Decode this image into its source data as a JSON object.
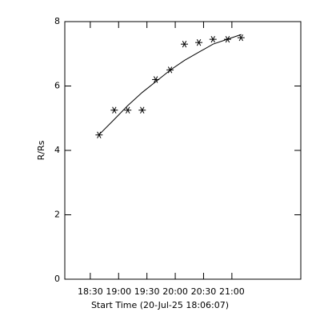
{
  "chart_data": {
    "type": "scatter",
    "xlabel": "Start Time (20-Jul-25 18:06:07)",
    "ylabel": "R/Rs",
    "color": "#000000",
    "series": [
      {
        "type": "scatter",
        "x": [
          1119.3,
          1135.4,
          1149.7,
          1165,
          1179.3,
          1194.5,
          1209.7,
          1225,
          1240,
          1255.4,
          1269.7
        ],
        "values": [
          4.48,
          5.25,
          5.25,
          5.25,
          6.2,
          6.5,
          7.3,
          7.35,
          7.45,
          7.45,
          7.5
        ]
      },
      {
        "type": "line",
        "x": [
          1119,
          1135,
          1150,
          1165,
          1180,
          1195,
          1210,
          1225,
          1240,
          1255,
          1270
        ],
        "values": [
          4.48,
          4.95,
          5.4,
          5.8,
          6.15,
          6.5,
          6.8,
          7.05,
          7.3,
          7.45,
          7.6
        ]
      }
    ],
    "xlim": [
      1083,
      1333
    ],
    "xticks": [
      {
        "value": 1110,
        "label": "18:30"
      },
      {
        "value": 1140,
        "label": "19:00"
      },
      {
        "value": 1170,
        "label": "19:30"
      },
      {
        "value": 1200,
        "label": "20:00"
      },
      {
        "value": 1230,
        "label": "20:30"
      },
      {
        "value": 1260,
        "label": "21:00"
      }
    ],
    "ylim": [
      0,
      8
    ],
    "yticks": [
      0,
      2,
      4,
      6,
      8
    ]
  }
}
